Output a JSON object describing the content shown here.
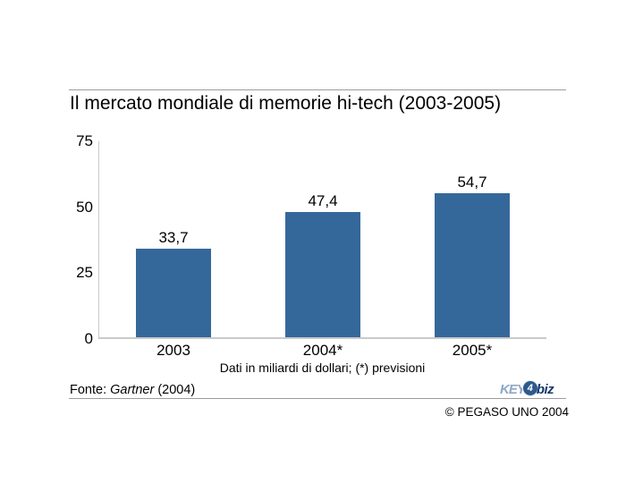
{
  "slide": {
    "title": "Il mercato mondiale di memorie hi-tech (2003-2005)",
    "caption": "Dati in miliardi di dollari; (*) previsioni",
    "source": {
      "prefix": "Fonte:",
      "name": "Gartner",
      "year": "(2004)"
    },
    "copyright": "© PEGASO UNO 2004",
    "logo": {
      "part1": "KEY",
      "part2": "4",
      "part3": "biz"
    }
  },
  "chart_data": {
    "type": "bar",
    "title": "Il mercato mondiale di memorie hi-tech (2003-2005)",
    "categories": [
      "2003",
      "2004*",
      "2005*"
    ],
    "values": [
      33.7,
      47.4,
      54.7
    ],
    "value_labels": [
      "33,7",
      "47,4",
      "54,7"
    ],
    "unit_note": "Dati in miliardi di dollari; (*) previsioni",
    "source_note": "Fonte: Gartner (2004)",
    "xlabel": "",
    "ylabel": "",
    "y_ticks": [
      "0",
      "25",
      "50",
      "75"
    ],
    "ylim": [
      0,
      75
    ],
    "bar_color": "#35689A",
    "axis_color": "#C9C9C9",
    "grid": false,
    "legend": false
  }
}
